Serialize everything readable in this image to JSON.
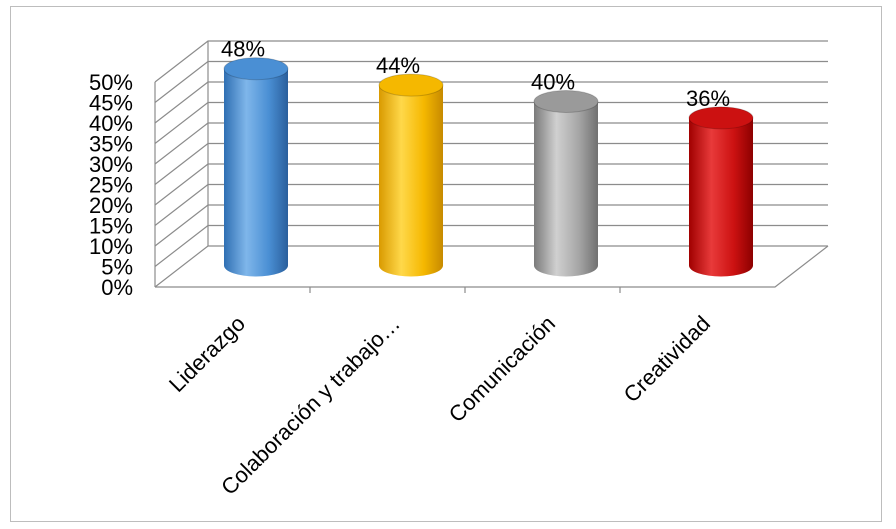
{
  "chart_data": {
    "type": "bar",
    "style": "3d-cylinder",
    "categories": [
      "Liderazgo",
      "Colaboración y trabajo…",
      "Comunicación",
      "Creatividad"
    ],
    "values": [
      48,
      44,
      40,
      36
    ],
    "data_labels": [
      "48%",
      "44%",
      "40%",
      "36%"
    ],
    "colors": [
      "#4a8fd4",
      "#f5b800",
      "#9a9a9a",
      "#cc1111"
    ],
    "yticks": [
      "0%",
      "5%",
      "10%",
      "15%",
      "20%",
      "25%",
      "30%",
      "35%",
      "40%",
      "45%",
      "50%"
    ],
    "ylim": [
      0,
      50
    ],
    "grid": true,
    "legend": "none"
  }
}
